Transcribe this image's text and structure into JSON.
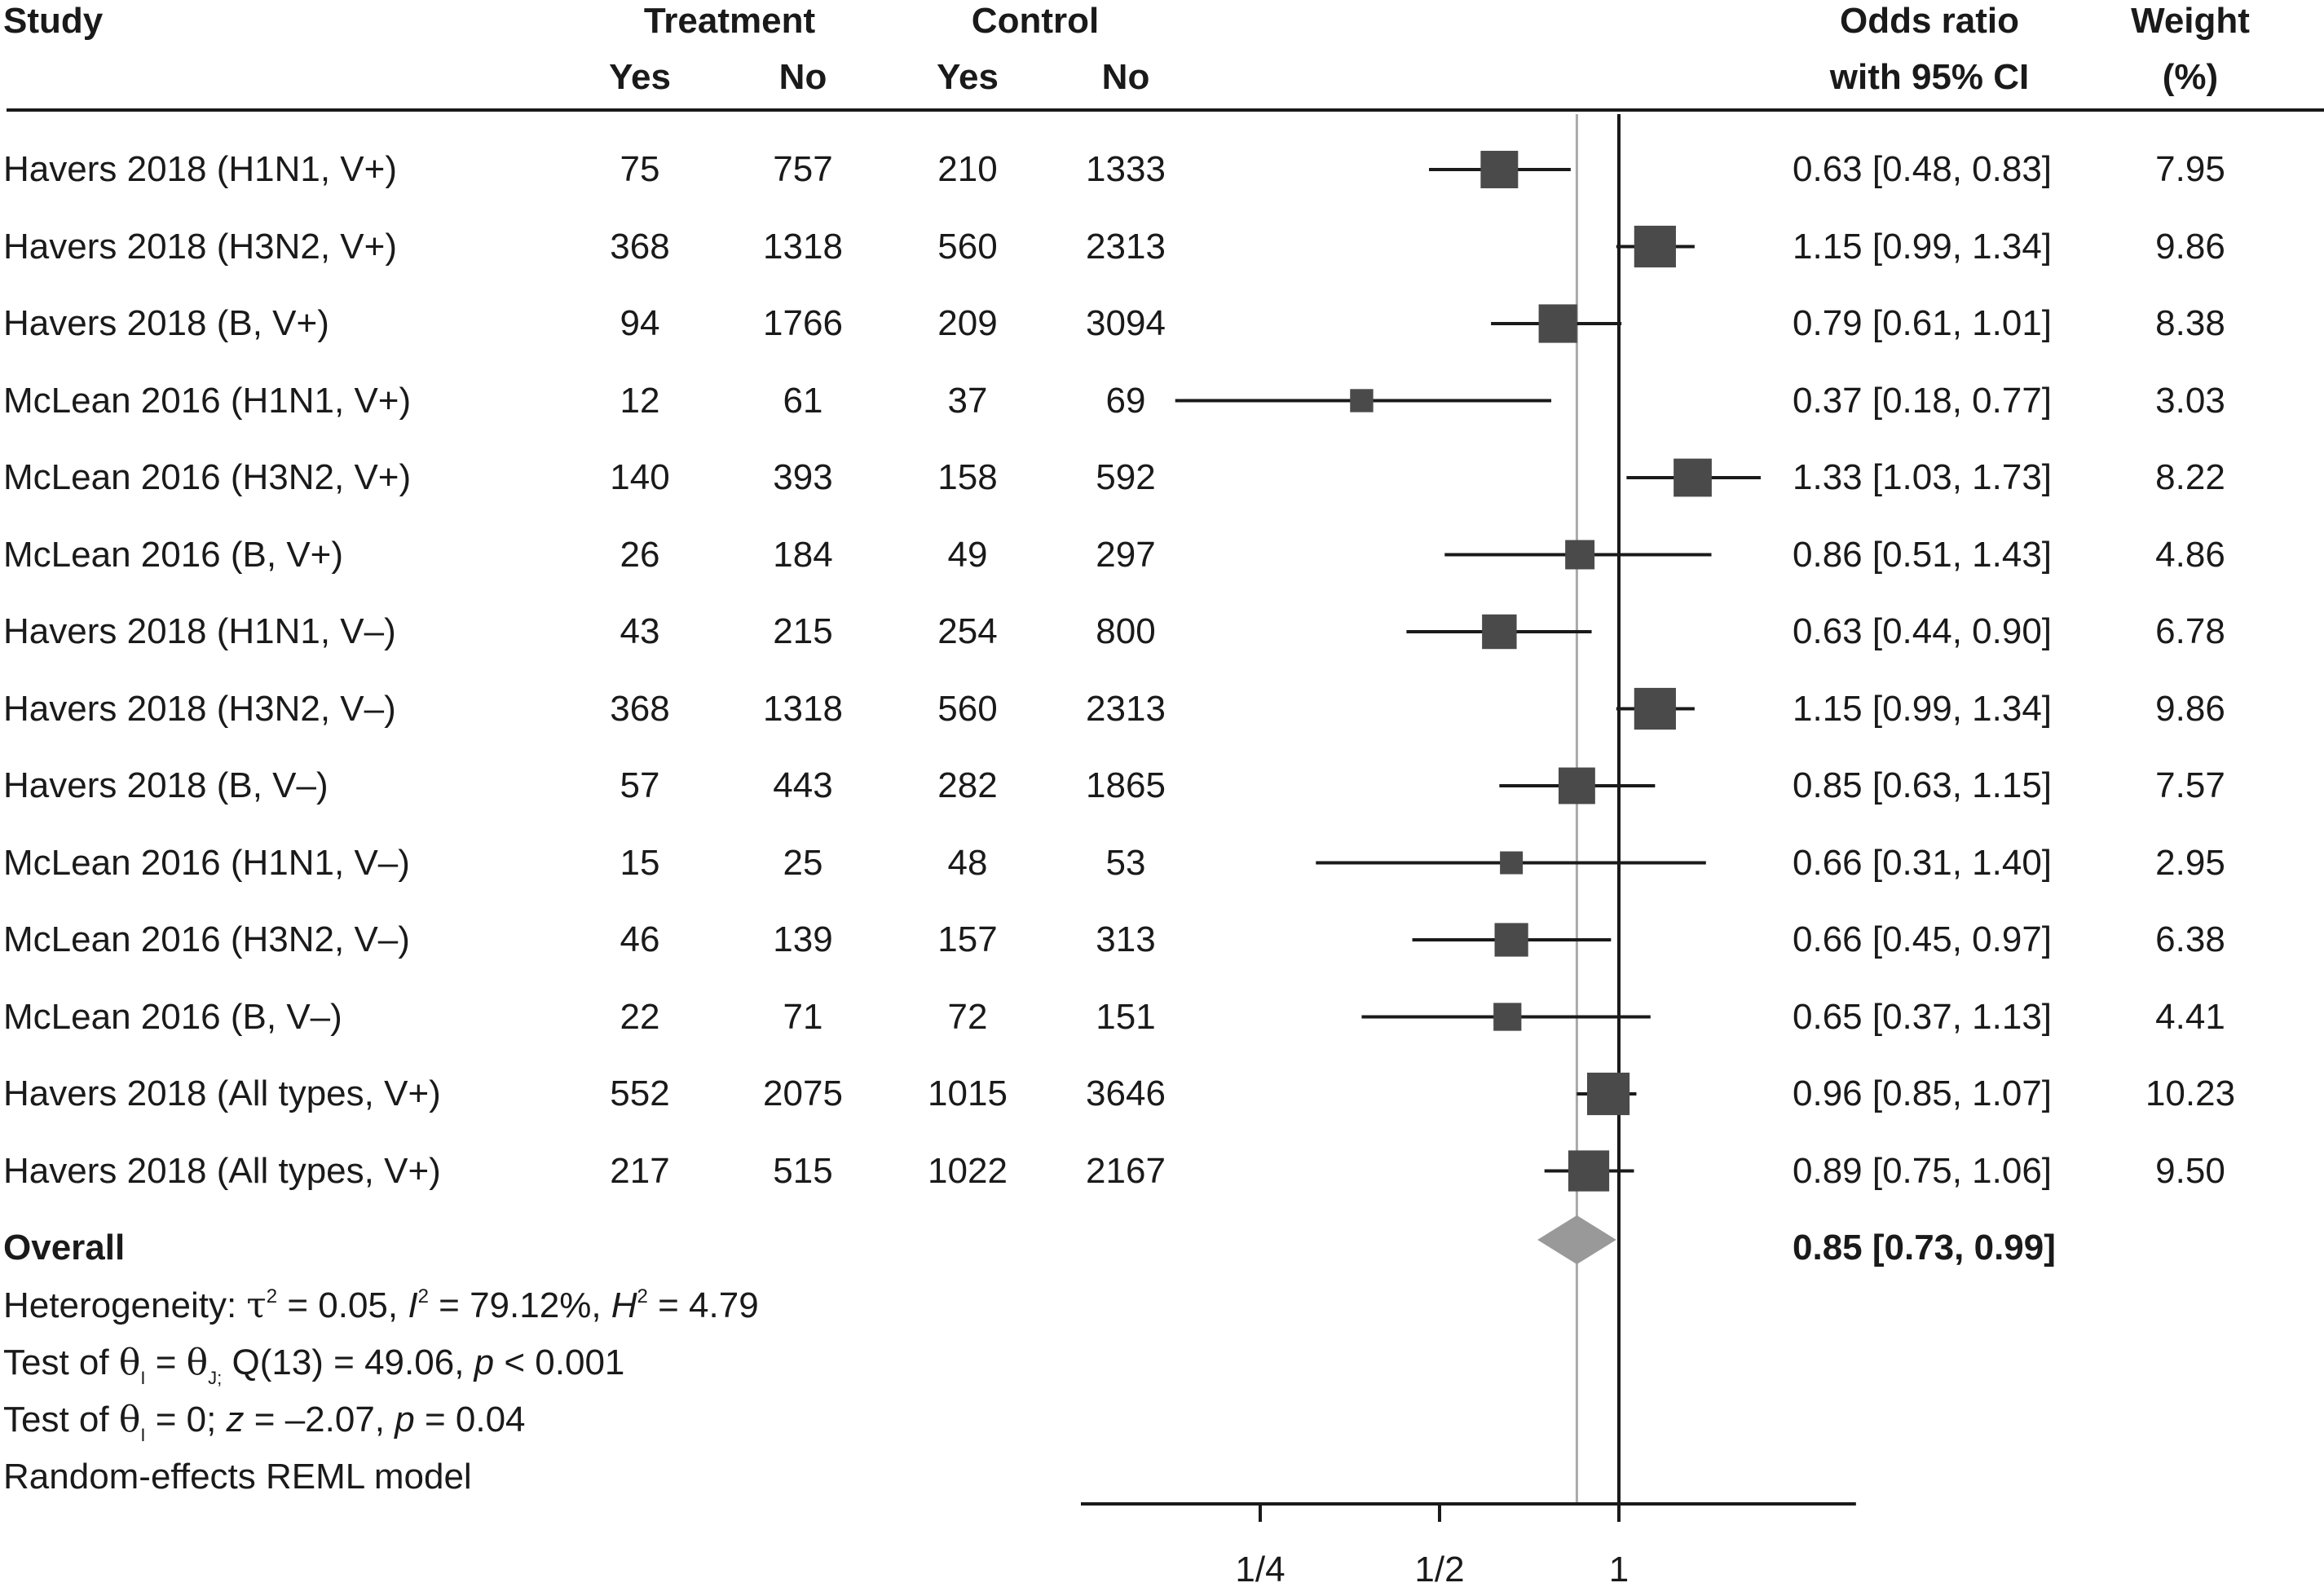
{
  "headers": {
    "study": "Study",
    "treatment": "Treatment",
    "control": "Control",
    "yes1": "Yes",
    "no1": "No",
    "yes2": "Yes",
    "no2": "No",
    "or_line1": "Odds ratio",
    "or_line2": "with 95% CI",
    "weight_line1": "Weight",
    "weight_line2": "(%)"
  },
  "rows": [
    {
      "study": "Havers 2018 (H1N1, V+)",
      "t_yes": "75",
      "t_no": "757",
      "c_yes": "210",
      "c_no": "1333",
      "or_text": "0.63 [0.48, 0.83]",
      "weight": "7.95"
    },
    {
      "study": "Havers 2018 (H3N2, V+)",
      "t_yes": "368",
      "t_no": "1318",
      "c_yes": "560",
      "c_no": "2313",
      "or_text": "1.15 [0.99, 1.34]",
      "weight": "9.86"
    },
    {
      "study": "Havers 2018 (B, V+)",
      "t_yes": "94",
      "t_no": "1766",
      "c_yes": "209",
      "c_no": "3094",
      "or_text": "0.79 [0.61, 1.01]",
      "weight": "8.38"
    },
    {
      "study": "McLean 2016 (H1N1, V+)",
      "t_yes": "12",
      "t_no": "61",
      "c_yes": "37",
      "c_no": "69",
      "or_text": "0.37 [0.18, 0.77]",
      "weight": "3.03"
    },
    {
      "study": "McLean 2016 (H3N2, V+)",
      "t_yes": "140",
      "t_no": "393",
      "c_yes": "158",
      "c_no": "592",
      "or_text": "1.33 [1.03, 1.73]",
      "weight": "8.22"
    },
    {
      "study": "McLean 2016 (B, V+)",
      "t_yes": "26",
      "t_no": "184",
      "c_yes": "49",
      "c_no": "297",
      "or_text": "0.86 [0.51, 1.43]",
      "weight": "4.86"
    },
    {
      "study": "Havers 2018 (H1N1, V–)",
      "t_yes": "43",
      "t_no": "215",
      "c_yes": "254",
      "c_no": "800",
      "or_text": "0.63 [0.44, 0.90]",
      "weight": "6.78"
    },
    {
      "study": "Havers 2018 (H3N2, V–)",
      "t_yes": "368",
      "t_no": "1318",
      "c_yes": "560",
      "c_no": "2313",
      "or_text": "1.15 [0.99, 1.34]",
      "weight": "9.86"
    },
    {
      "study": "Havers 2018 (B, V–)",
      "t_yes": "57",
      "t_no": "443",
      "c_yes": "282",
      "c_no": "1865",
      "or_text": "0.85 [0.63, 1.15]",
      "weight": "7.57"
    },
    {
      "study": "McLean 2016 (H1N1, V–)",
      "t_yes": "15",
      "t_no": "25",
      "c_yes": "48",
      "c_no": "53",
      "or_text": "0.66 [0.31, 1.40]",
      "weight": "2.95"
    },
    {
      "study": "McLean 2016 (H3N2, V–)",
      "t_yes": "46",
      "t_no": "139",
      "c_yes": "157",
      "c_no": "313",
      "or_text": "0.66 [0.45, 0.97]",
      "weight": "6.38"
    },
    {
      "study": "McLean 2016 (B, V–)",
      "t_yes": "22",
      "t_no": "71",
      "c_yes": "72",
      "c_no": "151",
      "or_text": "0.65 [0.37, 1.13]",
      "weight": "4.41"
    },
    {
      "study": "Havers 2018 (All types, V+)",
      "t_yes": "552",
      "t_no": "2075",
      "c_yes": "1015",
      "c_no": "3646",
      "or_text": "0.96 [0.85, 1.07]",
      "weight": "10.23"
    },
    {
      "study": "Havers 2018 (All types, V+)",
      "t_yes": "217",
      "t_no": "515",
      "c_yes": "1022",
      "c_no": "2167",
      "or_text": "0.89 [0.75, 1.06]",
      "weight": "9.50"
    }
  ],
  "overall": {
    "label": "Overall",
    "or_text": "0.85 [0.73, 0.99]"
  },
  "footer": {
    "het_prefix": "Heterogeneity: ",
    "tau": "τ",
    "het_mid1": " = 0.05, ",
    "I": "I",
    "het_mid2": " = 79.12%, ",
    "H": "H",
    "het_end": " = 4.79",
    "sq": "2",
    "test_prefix": "Test of  ",
    "theta": "θ",
    "sub_i": "I",
    "sub_j": "J;",
    "test1_mid": " =  ",
    "test1_end": " Q(13) = 49.06, ",
    "p": "p",
    "test1_p": " < 0.001",
    "test2_mid": " = 0; ",
    "z": "z",
    "test2_z": " = –2.07, ",
    "test2_p": " = 0.04",
    "model": "Random-effects REML model"
  },
  "chart_data": {
    "type": "forest",
    "x_scale": "log2",
    "xlim": [
      0.125,
      2.5
    ],
    "xticks": [
      {
        "value": 0.25,
        "label": "1/4"
      },
      {
        "value": 0.5,
        "label": "1/2"
      },
      {
        "value": 1,
        "label": "1"
      }
    ],
    "null_line": 1,
    "overall_line": 0.85,
    "series": [
      {
        "study": "Havers 2018 (H1N1, V+)",
        "or": 0.63,
        "lo": 0.48,
        "hi": 0.83,
        "weight": 7.95
      },
      {
        "study": "Havers 2018 (H3N2, V+)",
        "or": 1.15,
        "lo": 0.99,
        "hi": 1.34,
        "weight": 9.86
      },
      {
        "study": "Havers 2018 (B, V+)",
        "or": 0.79,
        "lo": 0.61,
        "hi": 1.01,
        "weight": 8.38
      },
      {
        "study": "McLean 2016 (H1N1, V+)",
        "or": 0.37,
        "lo": 0.18,
        "hi": 0.77,
        "weight": 3.03
      },
      {
        "study": "McLean 2016 (H3N2, V+)",
        "or": 1.33,
        "lo": 1.03,
        "hi": 1.73,
        "weight": 8.22
      },
      {
        "study": "McLean 2016 (B, V+)",
        "or": 0.86,
        "lo": 0.51,
        "hi": 1.43,
        "weight": 4.86
      },
      {
        "study": "Havers 2018 (H1N1, V–)",
        "or": 0.63,
        "lo": 0.44,
        "hi": 0.9,
        "weight": 6.78
      },
      {
        "study": "Havers 2018 (H3N2, V–)",
        "or": 1.15,
        "lo": 0.99,
        "hi": 1.34,
        "weight": 9.86
      },
      {
        "study": "Havers 2018 (B, V–)",
        "or": 0.85,
        "lo": 0.63,
        "hi": 1.15,
        "weight": 7.57
      },
      {
        "study": "McLean 2016 (H1N1, V–)",
        "or": 0.66,
        "lo": 0.31,
        "hi": 1.4,
        "weight": 2.95
      },
      {
        "study": "McLean 2016 (H3N2, V–)",
        "or": 0.66,
        "lo": 0.45,
        "hi": 0.97,
        "weight": 6.38
      },
      {
        "study": "McLean 2016 (B, V–)",
        "or": 0.65,
        "lo": 0.37,
        "hi": 1.13,
        "weight": 4.41
      },
      {
        "study": "Havers 2018 (All types, V+)",
        "or": 0.96,
        "lo": 0.85,
        "hi": 1.07,
        "weight": 10.23
      },
      {
        "study": "Havers 2018 (All types, V+)",
        "or": 0.89,
        "lo": 0.75,
        "hi": 1.06,
        "weight": 9.5
      }
    ],
    "overall": {
      "or": 0.85,
      "lo": 0.73,
      "hi": 0.99
    },
    "colors": {
      "marker": "#4a4a4a",
      "diamond": "#999999",
      "line": "#1a1a1a",
      "ref_line": "#aaaaaa"
    }
  }
}
